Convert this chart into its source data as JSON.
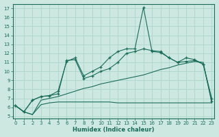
{
  "title": "",
  "xlabel": "Humidex (Indice chaleur)",
  "ylabel": "",
  "bg_color": "#cce8e0",
  "grid_color": "#b0d8cc",
  "line_color": "#1a6b5a",
  "x_ticks": [
    0,
    1,
    2,
    3,
    4,
    5,
    6,
    7,
    8,
    9,
    10,
    11,
    12,
    13,
    14,
    15,
    16,
    17,
    18,
    19,
    20,
    21,
    22,
    23
  ],
  "y_ticks": [
    5,
    6,
    7,
    8,
    9,
    10,
    11,
    12,
    13,
    14,
    15,
    16,
    17
  ],
  "ylim": [
    4.8,
    17.5
  ],
  "xlim": [
    -0.3,
    23.3
  ],
  "y_line1": [
    6.2,
    5.5,
    5.2,
    6.8,
    7.0,
    7.2,
    7.5,
    7.8,
    8.1,
    8.3,
    8.6,
    8.8,
    9.0,
    9.2,
    9.4,
    9.6,
    9.9,
    10.2,
    10.4,
    10.7,
    10.9,
    11.1,
    11.0,
    6.5
  ],
  "y_line2": [
    6.2,
    5.5,
    5.2,
    6.3,
    6.5,
    6.6,
    6.6,
    6.6,
    6.6,
    6.6,
    6.6,
    6.6,
    6.5,
    6.5,
    6.5,
    6.5,
    6.5,
    6.5,
    6.5,
    6.5,
    6.5,
    6.5,
    6.5,
    6.5
  ],
  "y_line3": [
    6.2,
    5.5,
    6.8,
    7.2,
    7.3,
    7.5,
    11.2,
    11.3,
    9.2,
    9.5,
    10.0,
    10.3,
    11.0,
    12.0,
    12.2,
    12.5,
    12.3,
    12.2,
    11.5,
    11.0,
    11.1,
    11.2,
    10.8,
    7.0
  ],
  "y_line4": [
    6.2,
    5.5,
    6.8,
    7.2,
    7.3,
    7.8,
    11.1,
    11.5,
    9.5,
    10.0,
    10.5,
    11.5,
    12.2,
    12.5,
    12.5,
    17.1,
    12.2,
    12.1,
    11.5,
    11.0,
    11.5,
    11.3,
    10.8,
    6.7
  ]
}
